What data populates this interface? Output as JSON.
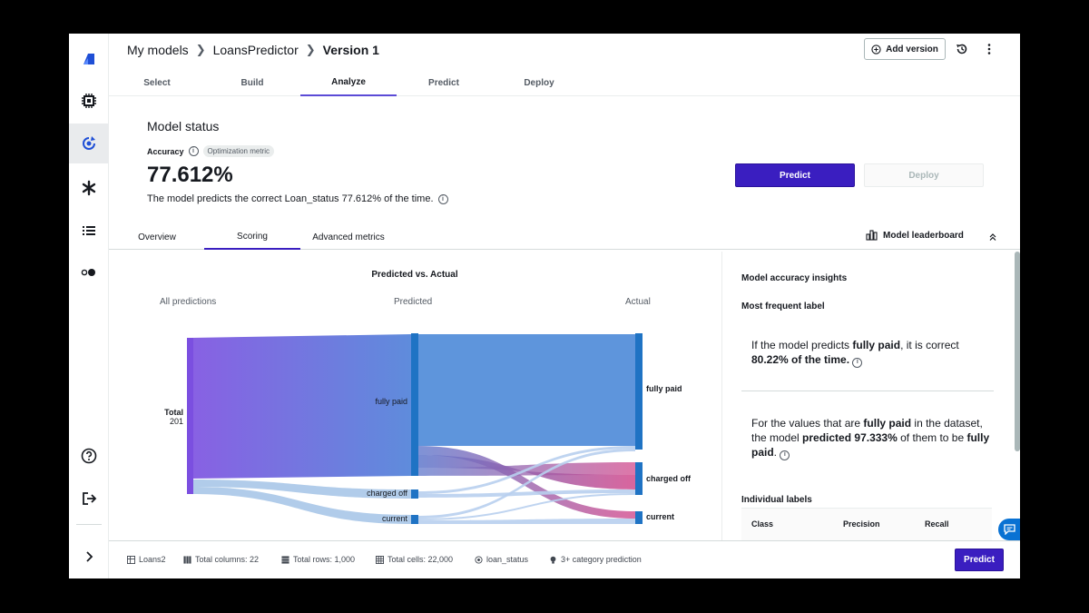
{
  "breadcrumb": {
    "items": [
      "My models",
      "LoansPredictor"
    ],
    "current": "Version 1"
  },
  "header": {
    "add_version_label": "Add version"
  },
  "steps": [
    {
      "label": "Select",
      "active": false
    },
    {
      "label": "Build",
      "active": false
    },
    {
      "label": "Analyze",
      "active": true
    },
    {
      "label": "Predict",
      "active": false
    },
    {
      "label": "Deploy",
      "active": false
    }
  ],
  "model_status": {
    "title": "Model status",
    "accuracy_label": "Accuracy",
    "metric_badge": "Optimization metric",
    "accuracy_value": "77.612%",
    "description": "The model predicts the correct Loan_status 77.612% of the time.",
    "predict_label": "Predict",
    "deploy_label": "Deploy"
  },
  "subtabs": [
    {
      "label": "Overview",
      "active": false
    },
    {
      "label": "Scoring",
      "active": true
    },
    {
      "label": "Advanced metrics",
      "active": false
    }
  ],
  "leaderboard_label": "Model leaderboard",
  "chart_data": {
    "type": "sankey",
    "title": "Predicted vs. Actual",
    "columns": [
      "All predictions",
      "Predicted",
      "Actual"
    ],
    "source": {
      "label": "Total",
      "value": 201
    },
    "predicted_nodes": [
      "fully paid",
      "charged off",
      "current"
    ],
    "actual_nodes": [
      "fully paid",
      "charged off",
      "current"
    ],
    "colors": {
      "source": "#7b4fe0",
      "node": "#1f73c4",
      "flow_to_charged": "#d24a8c",
      "flow_light": "#a8c6e8"
    }
  },
  "insights": {
    "title": "Model accuracy insights",
    "most_frequent_label": "Most frequent label",
    "p1_pre": "If the model predicts ",
    "p1_label": "fully paid",
    "p1_mid": ", it is correct ",
    "p1_value": "80.22% of the time.",
    "p2_pre": "For the values that are ",
    "p2_label": "fully paid",
    "p2_mid": " in the dataset, the model ",
    "p2_value": "predicted 97.333%",
    "p2_post": " of them to be ",
    "p2_label2": "fully paid",
    "p2_end": ".",
    "individual_labels": "Individual labels",
    "table_headers": [
      "Class",
      "Precision",
      "Recall"
    ]
  },
  "footer": {
    "dataset": "Loans2",
    "columns": "Total columns: 22",
    "rows": "Total rows: 1,000",
    "cells": "Total cells: 22,000",
    "target": "loan_status",
    "problem_type": "3+ category prediction",
    "predict_label": "Predict"
  }
}
